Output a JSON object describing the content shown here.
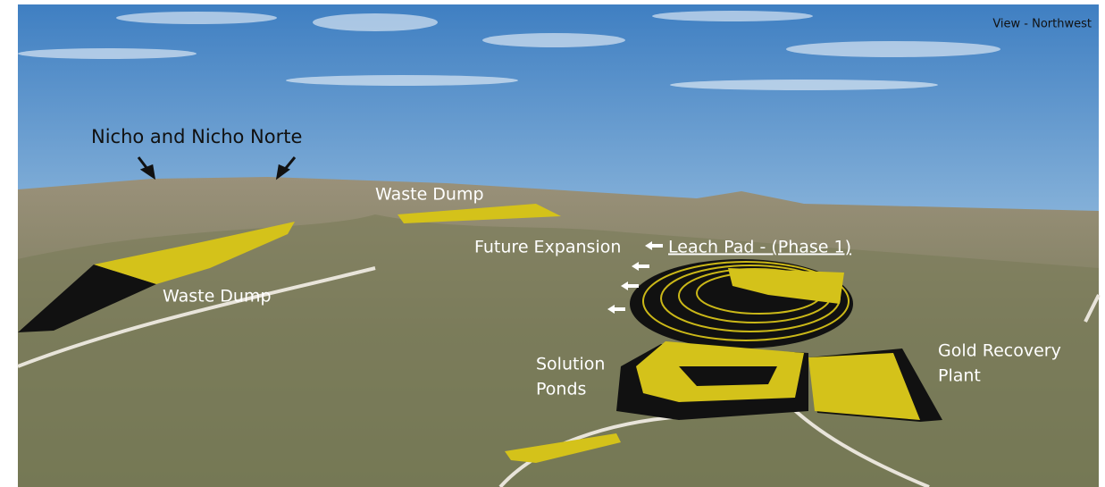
{
  "view_label": "View - Northwest",
  "labels": [
    {
      "name": "nicho",
      "lines": [
        "Nicho and Nicho Norte"
      ]
    },
    {
      "name": "waste-dump-north",
      "lines": [
        "Waste Dump"
      ]
    },
    {
      "name": "waste-dump-west",
      "lines": [
        "Waste Dump"
      ]
    },
    {
      "name": "future-expansion",
      "lines": [
        "Future Expansion"
      ]
    },
    {
      "name": "leach-pad",
      "lines": [
        "Leach Pad - (Phase 1)"
      ]
    },
    {
      "name": "solution-ponds",
      "lines": [
        "Solution",
        "Ponds"
      ]
    },
    {
      "name": "gold-recovery-plant",
      "lines": [
        "Gold Recovery",
        "Plant"
      ]
    }
  ]
}
